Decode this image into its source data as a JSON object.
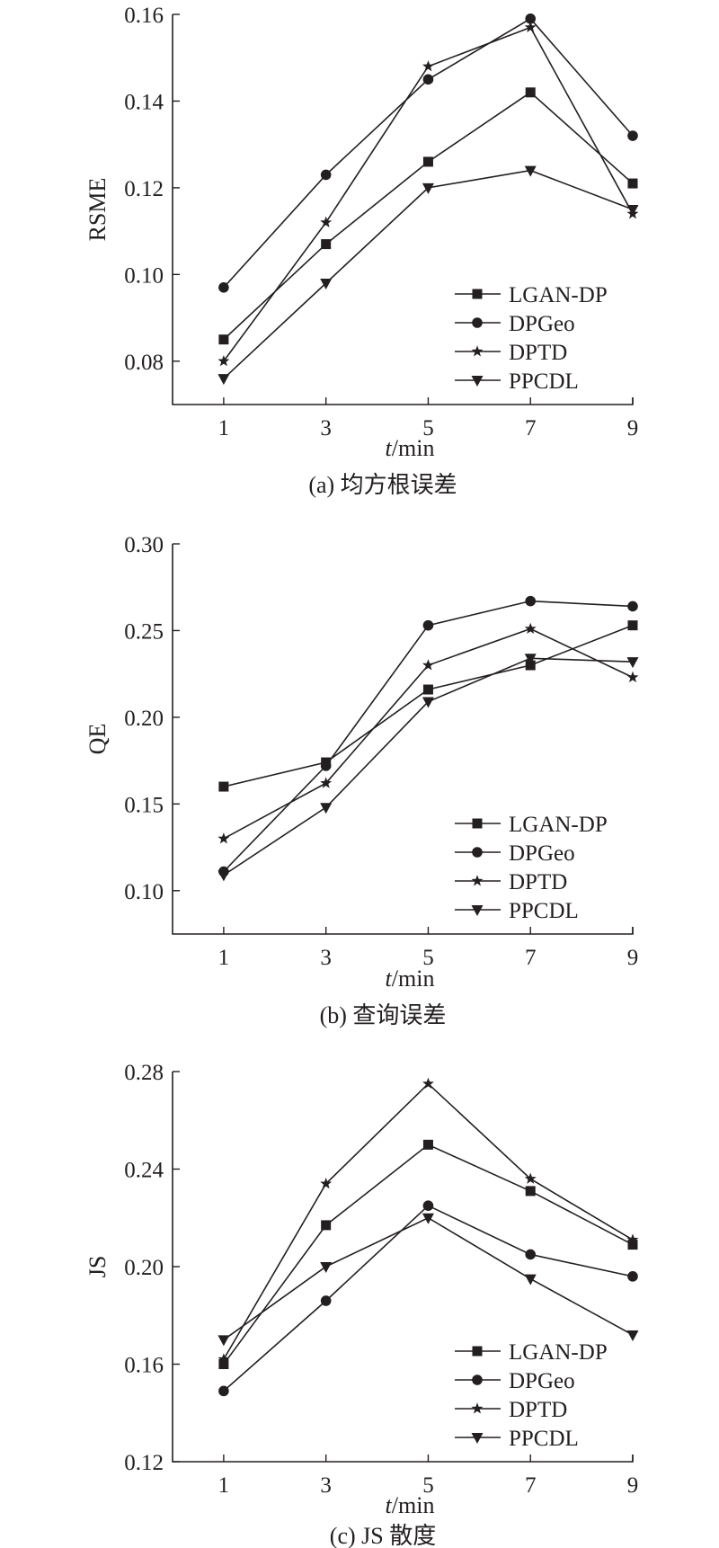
{
  "chart_data": [
    {
      "type": "line",
      "caption": "(a) 均方根误差",
      "ylabel": "RSME",
      "xlabel_italic": "t",
      "xlabel_unit": "/min",
      "x": [
        1,
        3,
        5,
        7,
        9
      ],
      "xlim": [
        0,
        9
      ],
      "ylim": [
        0.07,
        0.16
      ],
      "yticks": [
        0.08,
        0.1,
        0.12,
        0.14,
        0.16
      ],
      "ytick_labels": [
        "0.08",
        "0.10",
        "0.12",
        "0.14",
        "0.16"
      ],
      "legend_position": "bottom-right",
      "grid": false,
      "series": [
        {
          "name": "LGAN-DP",
          "marker": "square",
          "values": [
            0.085,
            0.107,
            0.126,
            0.142,
            0.121
          ]
        },
        {
          "name": "DPGeo",
          "marker": "circle",
          "values": [
            0.097,
            0.123,
            0.145,
            0.159,
            0.132
          ]
        },
        {
          "name": "DPTD",
          "marker": "star",
          "values": [
            0.08,
            0.112,
            0.148,
            0.157,
            0.114
          ]
        },
        {
          "name": "PPCDL",
          "marker": "triangle-down",
          "values": [
            0.076,
            0.098,
            0.12,
            0.124,
            0.115
          ]
        }
      ]
    },
    {
      "type": "line",
      "caption": "(b) 查询误差",
      "ylabel": "QE",
      "xlabel_italic": "t",
      "xlabel_unit": "/min",
      "x": [
        1,
        3,
        5,
        7,
        9
      ],
      "xlim": [
        0,
        9
      ],
      "ylim": [
        0.075,
        0.3
      ],
      "yticks": [
        0.1,
        0.15,
        0.2,
        0.25,
        0.3
      ],
      "ytick_labels": [
        "0.10",
        "0.15",
        "0.20",
        "0.25",
        "0.30"
      ],
      "legend_position": "bottom-right",
      "grid": false,
      "series": [
        {
          "name": "LGAN-DP",
          "marker": "square",
          "values": [
            0.16,
            0.174,
            0.216,
            0.23,
            0.253
          ]
        },
        {
          "name": "DPGeo",
          "marker": "circle",
          "values": [
            0.111,
            0.172,
            0.253,
            0.267,
            0.264
          ]
        },
        {
          "name": "DPTD",
          "marker": "star",
          "values": [
            0.13,
            0.162,
            0.23,
            0.251,
            0.223
          ]
        },
        {
          "name": "PPCDL",
          "marker": "triangle-down",
          "values": [
            0.109,
            0.148,
            0.209,
            0.234,
            0.232
          ]
        }
      ]
    },
    {
      "type": "line",
      "caption": "(c) JS 散度",
      "ylabel": "JS",
      "xlabel_italic": "t",
      "xlabel_unit": "/min",
      "x": [
        1,
        3,
        5,
        7,
        9
      ],
      "xlim": [
        0,
        9
      ],
      "ylim": [
        0.12,
        0.28
      ],
      "yticks": [
        0.12,
        0.16,
        0.2,
        0.24,
        0.28
      ],
      "ytick_labels": [
        "0.12",
        "0.16",
        "0.20",
        "0.24",
        "0.28"
      ],
      "legend_position": "bottom-right",
      "grid": false,
      "series": [
        {
          "name": "LGAN-DP",
          "marker": "square",
          "values": [
            0.16,
            0.217,
            0.25,
            0.231,
            0.209
          ]
        },
        {
          "name": "DPGeo",
          "marker": "circle",
          "values": [
            0.149,
            0.186,
            0.225,
            0.205,
            0.196
          ]
        },
        {
          "name": "DPTD",
          "marker": "star",
          "values": [
            0.162,
            0.234,
            0.275,
            0.236,
            0.211
          ]
        },
        {
          "name": "PPCDL",
          "marker": "triangle-down",
          "values": [
            0.17,
            0.2,
            0.22,
            0.195,
            0.172
          ]
        }
      ]
    }
  ]
}
